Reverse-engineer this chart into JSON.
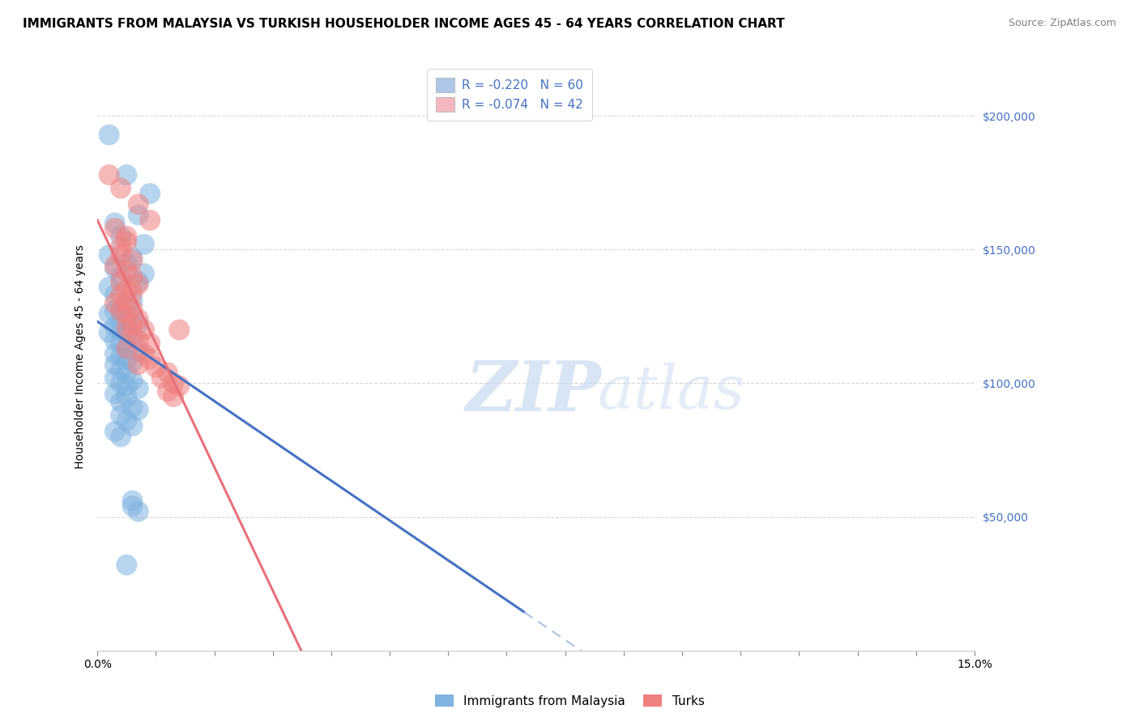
{
  "title": "IMMIGRANTS FROM MALAYSIA VS TURKISH HOUSEHOLDER INCOME AGES 45 - 64 YEARS CORRELATION CHART",
  "source": "Source: ZipAtlas.com",
  "ylabel": "Householder Income Ages 45 - 64 years",
  "xlim": [
    0.0,
    0.15
  ],
  "ylim": [
    0,
    220000
  ],
  "legend_items": [
    {
      "label": "R = -0.220   N = 60",
      "color": "#aec6e8"
    },
    {
      "label": "R = -0.074   N = 42",
      "color": "#f4b8c1"
    }
  ],
  "malaysia_color": "#7fb3e0",
  "turks_color": "#f08080",
  "malaysia_line_color": "#4472c4",
  "turks_line_color": "#e8707a",
  "background_color": "#ffffff",
  "grid_color": "#cccccc",
  "malaysia_points": [
    [
      0.002,
      193000
    ],
    [
      0.005,
      178000
    ],
    [
      0.009,
      171000
    ],
    [
      0.007,
      163000
    ],
    [
      0.003,
      160000
    ],
    [
      0.004,
      155000
    ],
    [
      0.008,
      152000
    ],
    [
      0.002,
      148000
    ],
    [
      0.006,
      147000
    ],
    [
      0.005,
      145000
    ],
    [
      0.003,
      143000
    ],
    [
      0.008,
      141000
    ],
    [
      0.004,
      140000
    ],
    [
      0.007,
      138000
    ],
    [
      0.002,
      136000
    ],
    [
      0.003,
      133000
    ],
    [
      0.006,
      131000
    ],
    [
      0.005,
      130000
    ],
    [
      0.004,
      128000
    ],
    [
      0.003,
      127000
    ],
    [
      0.002,
      126000
    ],
    [
      0.006,
      125000
    ],
    [
      0.004,
      124000
    ],
    [
      0.005,
      123000
    ],
    [
      0.007,
      122000
    ],
    [
      0.003,
      121000
    ],
    [
      0.004,
      120000
    ],
    [
      0.002,
      119000
    ],
    [
      0.005,
      118000
    ],
    [
      0.006,
      117000
    ],
    [
      0.003,
      116000
    ],
    [
      0.004,
      115000
    ],
    [
      0.005,
      113000
    ],
    [
      0.007,
      112000
    ],
    [
      0.003,
      111000
    ],
    [
      0.004,
      110000
    ],
    [
      0.005,
      109000
    ],
    [
      0.006,
      108000
    ],
    [
      0.003,
      107000
    ],
    [
      0.004,
      105000
    ],
    [
      0.005,
      104000
    ],
    [
      0.003,
      102000
    ],
    [
      0.006,
      101000
    ],
    [
      0.004,
      100000
    ],
    [
      0.005,
      99000
    ],
    [
      0.007,
      98000
    ],
    [
      0.003,
      96000
    ],
    [
      0.005,
      95000
    ],
    [
      0.004,
      93000
    ],
    [
      0.006,
      91000
    ],
    [
      0.007,
      90000
    ],
    [
      0.004,
      88000
    ],
    [
      0.005,
      86000
    ],
    [
      0.006,
      84000
    ],
    [
      0.003,
      82000
    ],
    [
      0.004,
      80000
    ],
    [
      0.006,
      56000
    ],
    [
      0.006,
      54000
    ],
    [
      0.007,
      52000
    ],
    [
      0.005,
      32000
    ]
  ],
  "turks_points": [
    [
      0.002,
      178000
    ],
    [
      0.004,
      173000
    ],
    [
      0.007,
      167000
    ],
    [
      0.009,
      161000
    ],
    [
      0.003,
      158000
    ],
    [
      0.005,
      155000
    ],
    [
      0.005,
      153000
    ],
    [
      0.004,
      151000
    ],
    [
      0.004,
      148000
    ],
    [
      0.006,
      146000
    ],
    [
      0.003,
      144000
    ],
    [
      0.005,
      142000
    ],
    [
      0.006,
      140000
    ],
    [
      0.004,
      138000
    ],
    [
      0.007,
      137000
    ],
    [
      0.005,
      135000
    ],
    [
      0.006,
      134000
    ],
    [
      0.004,
      133000
    ],
    [
      0.005,
      131000
    ],
    [
      0.003,
      130000
    ],
    [
      0.006,
      128000
    ],
    [
      0.004,
      127000
    ],
    [
      0.005,
      126000
    ],
    [
      0.007,
      124000
    ],
    [
      0.006,
      122000
    ],
    [
      0.005,
      121000
    ],
    [
      0.008,
      120000
    ],
    [
      0.006,
      118000
    ],
    [
      0.007,
      116000
    ],
    [
      0.009,
      115000
    ],
    [
      0.005,
      113000
    ],
    [
      0.008,
      111000
    ],
    [
      0.009,
      109000
    ],
    [
      0.007,
      107000
    ],
    [
      0.01,
      106000
    ],
    [
      0.012,
      104000
    ],
    [
      0.011,
      102000
    ],
    [
      0.013,
      100000
    ],
    [
      0.014,
      99000
    ],
    [
      0.012,
      97000
    ],
    [
      0.013,
      95000
    ],
    [
      0.014,
      120000
    ]
  ],
  "title_fontsize": 11,
  "axis_fontsize": 10,
  "tick_fontsize": 10,
  "source_fontsize": 9
}
